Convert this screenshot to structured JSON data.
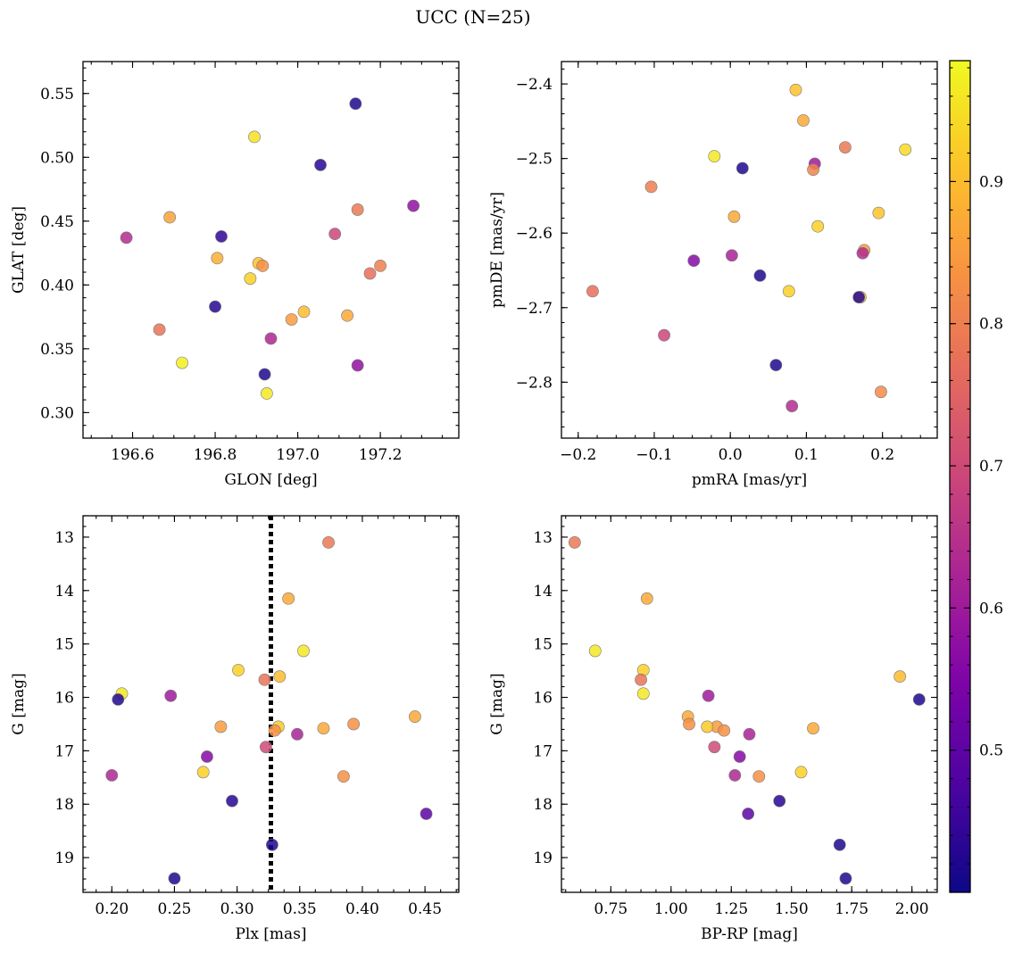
{
  "figure": {
    "title": "UCC (N=25)"
  },
  "colorbar": {
    "colormap": "plasma",
    "vmin": 0.4,
    "vmax": 0.985,
    "ticks": [
      0.5,
      0.6,
      0.7,
      0.8,
      0.9
    ],
    "tick_labels": [
      "0.5",
      "0.6",
      "0.7",
      "0.8",
      "0.9"
    ]
  },
  "chart_data": [
    {
      "type": "scatter",
      "id": "glon-glat",
      "title": "",
      "xlabel": "GLON [deg]",
      "ylabel": "GLAT [deg]",
      "xlim": [
        196.48,
        197.39
      ],
      "ylim": [
        0.28,
        0.575
      ],
      "y_inverted": false,
      "xticks": [
        196.6,
        196.8,
        197.0,
        197.2
      ],
      "xtick_labels": [
        "196.6",
        "196.8",
        "197.0",
        "197.2"
      ],
      "yticks": [
        0.3,
        0.35,
        0.4,
        0.45,
        0.5,
        0.55
      ],
      "ytick_labels": [
        "0.30",
        "0.35",
        "0.40",
        "0.45",
        "0.50",
        "0.55"
      ],
      "points": [
        {
          "x": 197.14,
          "y": 0.542,
          "c": 0.42
        },
        {
          "x": 197.055,
          "y": 0.494,
          "c": 0.43
        },
        {
          "x": 196.895,
          "y": 0.516,
          "c": 0.95
        },
        {
          "x": 197.28,
          "y": 0.462,
          "c": 0.58
        },
        {
          "x": 197.145,
          "y": 0.459,
          "c": 0.79
        },
        {
          "x": 196.585,
          "y": 0.437,
          "c": 0.64
        },
        {
          "x": 196.69,
          "y": 0.453,
          "c": 0.86
        },
        {
          "x": 197.09,
          "y": 0.44,
          "c": 0.69
        },
        {
          "x": 196.815,
          "y": 0.438,
          "c": 0.44
        },
        {
          "x": 196.805,
          "y": 0.421,
          "c": 0.88
        },
        {
          "x": 196.905,
          "y": 0.417,
          "c": 0.91
        },
        {
          "x": 196.915,
          "y": 0.415,
          "c": 0.83
        },
        {
          "x": 197.2,
          "y": 0.415,
          "c": 0.8
        },
        {
          "x": 197.175,
          "y": 0.409,
          "c": 0.77
        },
        {
          "x": 196.885,
          "y": 0.405,
          "c": 0.93
        },
        {
          "x": 196.8,
          "y": 0.383,
          "c": 0.43
        },
        {
          "x": 197.015,
          "y": 0.379,
          "c": 0.9
        },
        {
          "x": 196.985,
          "y": 0.373,
          "c": 0.85
        },
        {
          "x": 197.12,
          "y": 0.376,
          "c": 0.87
        },
        {
          "x": 196.665,
          "y": 0.365,
          "c": 0.78
        },
        {
          "x": 196.935,
          "y": 0.358,
          "c": 0.63
        },
        {
          "x": 196.72,
          "y": 0.339,
          "c": 0.97
        },
        {
          "x": 197.145,
          "y": 0.337,
          "c": 0.58
        },
        {
          "x": 196.92,
          "y": 0.33,
          "c": 0.42
        },
        {
          "x": 196.925,
          "y": 0.315,
          "c": 0.96
        }
      ]
    },
    {
      "type": "scatter",
      "id": "pmra-pmde",
      "title": "",
      "xlabel": "pmRA [mas/yr]",
      "ylabel": "pmDE [mas/yr]",
      "xlim": [
        -0.222,
        0.272
      ],
      "ylim": [
        -2.875,
        -2.37
      ],
      "y_inverted": false,
      "xticks": [
        -0.2,
        -0.1,
        0.0,
        0.1,
        0.2
      ],
      "xtick_labels": [
        "−0.2",
        "−0.1",
        "0.0",
        "0.1",
        "0.2"
      ],
      "yticks": [
        -2.8,
        -2.7,
        -2.6,
        -2.5,
        -2.4
      ],
      "ytick_labels": [
        "−2.8",
        "−2.7",
        "−2.6",
        "−2.5",
        "−2.4"
      ],
      "points": [
        {
          "x": 0.086,
          "y": -2.408,
          "c": 0.91
        },
        {
          "x": 0.096,
          "y": -2.449,
          "c": 0.87
        },
        {
          "x": 0.151,
          "y": -2.485,
          "c": 0.79
        },
        {
          "x": 0.23,
          "y": -2.488,
          "c": 0.94
        },
        {
          "x": -0.021,
          "y": -2.497,
          "c": 0.96
        },
        {
          "x": 0.016,
          "y": -2.513,
          "c": 0.42
        },
        {
          "x": 0.111,
          "y": -2.507,
          "c": 0.6
        },
        {
          "x": 0.109,
          "y": -2.515,
          "c": 0.81
        },
        {
          "x": -0.104,
          "y": -2.538,
          "c": 0.8
        },
        {
          "x": 0.005,
          "y": -2.578,
          "c": 0.87
        },
        {
          "x": 0.195,
          "y": -2.573,
          "c": 0.91
        },
        {
          "x": 0.115,
          "y": -2.591,
          "c": 0.93
        },
        {
          "x": 0.176,
          "y": -2.623,
          "c": 0.85
        },
        {
          "x": 0.174,
          "y": -2.627,
          "c": 0.64
        },
        {
          "x": -0.048,
          "y": -2.637,
          "c": 0.56
        },
        {
          "x": 0.002,
          "y": -2.63,
          "c": 0.62
        },
        {
          "x": 0.039,
          "y": -2.657,
          "c": 0.42
        },
        {
          "x": -0.181,
          "y": -2.678,
          "c": 0.77
        },
        {
          "x": 0.077,
          "y": -2.678,
          "c": 0.93
        },
        {
          "x": 0.171,
          "y": -2.686,
          "c": 0.92
        },
        {
          "x": 0.169,
          "y": -2.686,
          "c": 0.43
        },
        {
          "x": -0.087,
          "y": -2.737,
          "c": 0.69
        },
        {
          "x": 0.06,
          "y": -2.777,
          "c": 0.42
        },
        {
          "x": 0.198,
          "y": -2.813,
          "c": 0.82
        },
        {
          "x": 0.081,
          "y": -2.832,
          "c": 0.64
        }
      ]
    },
    {
      "type": "scatter",
      "id": "plx-g",
      "title": "",
      "xlabel": "Plx [mas]",
      "ylabel": "G [mag]",
      "xlim": [
        0.177,
        0.477
      ],
      "ylim": [
        12.6,
        19.65
      ],
      "y_inverted": true,
      "xticks": [
        0.2,
        0.25,
        0.3,
        0.35,
        0.4,
        0.45
      ],
      "xtick_labels": [
        "0.20",
        "0.25",
        "0.30",
        "0.35",
        "0.40",
        "0.45"
      ],
      "yticks": [
        13,
        14,
        15,
        16,
        17,
        18,
        19
      ],
      "ytick_labels": [
        "13",
        "14",
        "15",
        "16",
        "17",
        "18",
        "19"
      ],
      "vline": {
        "x": 0.327,
        "style": "dotted",
        "color": "#000000"
      },
      "points": [
        {
          "x": 0.373,
          "y": 13.1,
          "c": 0.79
        },
        {
          "x": 0.341,
          "y": 14.15,
          "c": 0.87
        },
        {
          "x": 0.353,
          "y": 15.13,
          "c": 0.96
        },
        {
          "x": 0.301,
          "y": 15.49,
          "c": 0.93
        },
        {
          "x": 0.334,
          "y": 15.61,
          "c": 0.9
        },
        {
          "x": 0.322,
          "y": 15.67,
          "c": 0.78
        },
        {
          "x": 0.208,
          "y": 15.93,
          "c": 0.96
        },
        {
          "x": 0.205,
          "y": 16.04,
          "c": 0.42
        },
        {
          "x": 0.247,
          "y": 15.97,
          "c": 0.6
        },
        {
          "x": 0.442,
          "y": 16.36,
          "c": 0.87
        },
        {
          "x": 0.393,
          "y": 16.5,
          "c": 0.83
        },
        {
          "x": 0.287,
          "y": 16.55,
          "c": 0.85
        },
        {
          "x": 0.333,
          "y": 16.55,
          "c": 0.92
        },
        {
          "x": 0.33,
          "y": 16.62,
          "c": 0.83
        },
        {
          "x": 0.369,
          "y": 16.58,
          "c": 0.87
        },
        {
          "x": 0.348,
          "y": 16.69,
          "c": 0.62
        },
        {
          "x": 0.323,
          "y": 16.93,
          "c": 0.7
        },
        {
          "x": 0.276,
          "y": 17.11,
          "c": 0.56
        },
        {
          "x": 0.273,
          "y": 17.4,
          "c": 0.93
        },
        {
          "x": 0.2,
          "y": 17.46,
          "c": 0.63
        },
        {
          "x": 0.385,
          "y": 17.48,
          "c": 0.83
        },
        {
          "x": 0.296,
          "y": 17.94,
          "c": 0.43
        },
        {
          "x": 0.451,
          "y": 18.18,
          "c": 0.5
        },
        {
          "x": 0.328,
          "y": 18.76,
          "c": 0.42
        },
        {
          "x": 0.25,
          "y": 19.39,
          "c": 0.42
        }
      ]
    },
    {
      "type": "scatter",
      "id": "bprp-g",
      "title": "",
      "xlabel": "BP-RP [mag]",
      "ylabel": "G [mag]",
      "xlim": [
        0.545,
        2.105
      ],
      "ylim": [
        12.6,
        19.65
      ],
      "y_inverted": true,
      "xticks": [
        0.75,
        1.0,
        1.25,
        1.5,
        1.75,
        2.0
      ],
      "xtick_labels": [
        "0.75",
        "1.00",
        "1.25",
        "1.50",
        "1.75",
        "2.00"
      ],
      "yticks": [
        13,
        14,
        15,
        16,
        17,
        18,
        19
      ],
      "ytick_labels": [
        "13",
        "14",
        "15",
        "16",
        "17",
        "18",
        "19"
      ],
      "points": [
        {
          "x": 0.6,
          "y": 13.1,
          "c": 0.79
        },
        {
          "x": 0.9,
          "y": 14.15,
          "c": 0.87
        },
        {
          "x": 0.685,
          "y": 15.13,
          "c": 0.96
        },
        {
          "x": 0.885,
          "y": 15.49,
          "c": 0.93
        },
        {
          "x": 1.95,
          "y": 15.61,
          "c": 0.9
        },
        {
          "x": 0.875,
          "y": 15.67,
          "c": 0.78
        },
        {
          "x": 0.885,
          "y": 15.93,
          "c": 0.96
        },
        {
          "x": 2.03,
          "y": 16.04,
          "c": 0.42
        },
        {
          "x": 1.155,
          "y": 15.97,
          "c": 0.6
        },
        {
          "x": 1.07,
          "y": 16.36,
          "c": 0.87
        },
        {
          "x": 1.075,
          "y": 16.5,
          "c": 0.83
        },
        {
          "x": 1.19,
          "y": 16.55,
          "c": 0.85
        },
        {
          "x": 1.15,
          "y": 16.55,
          "c": 0.92
        },
        {
          "x": 1.22,
          "y": 16.62,
          "c": 0.83
        },
        {
          "x": 1.59,
          "y": 16.58,
          "c": 0.87
        },
        {
          "x": 1.325,
          "y": 16.69,
          "c": 0.62
        },
        {
          "x": 1.18,
          "y": 16.93,
          "c": 0.7
        },
        {
          "x": 1.285,
          "y": 17.11,
          "c": 0.56
        },
        {
          "x": 1.54,
          "y": 17.4,
          "c": 0.93
        },
        {
          "x": 1.265,
          "y": 17.46,
          "c": 0.63
        },
        {
          "x": 1.365,
          "y": 17.48,
          "c": 0.83
        },
        {
          "x": 1.45,
          "y": 17.94,
          "c": 0.43
        },
        {
          "x": 1.32,
          "y": 18.18,
          "c": 0.5
        },
        {
          "x": 1.7,
          "y": 18.76,
          "c": 0.42
        },
        {
          "x": 1.725,
          "y": 19.39,
          "c": 0.42
        }
      ]
    }
  ]
}
